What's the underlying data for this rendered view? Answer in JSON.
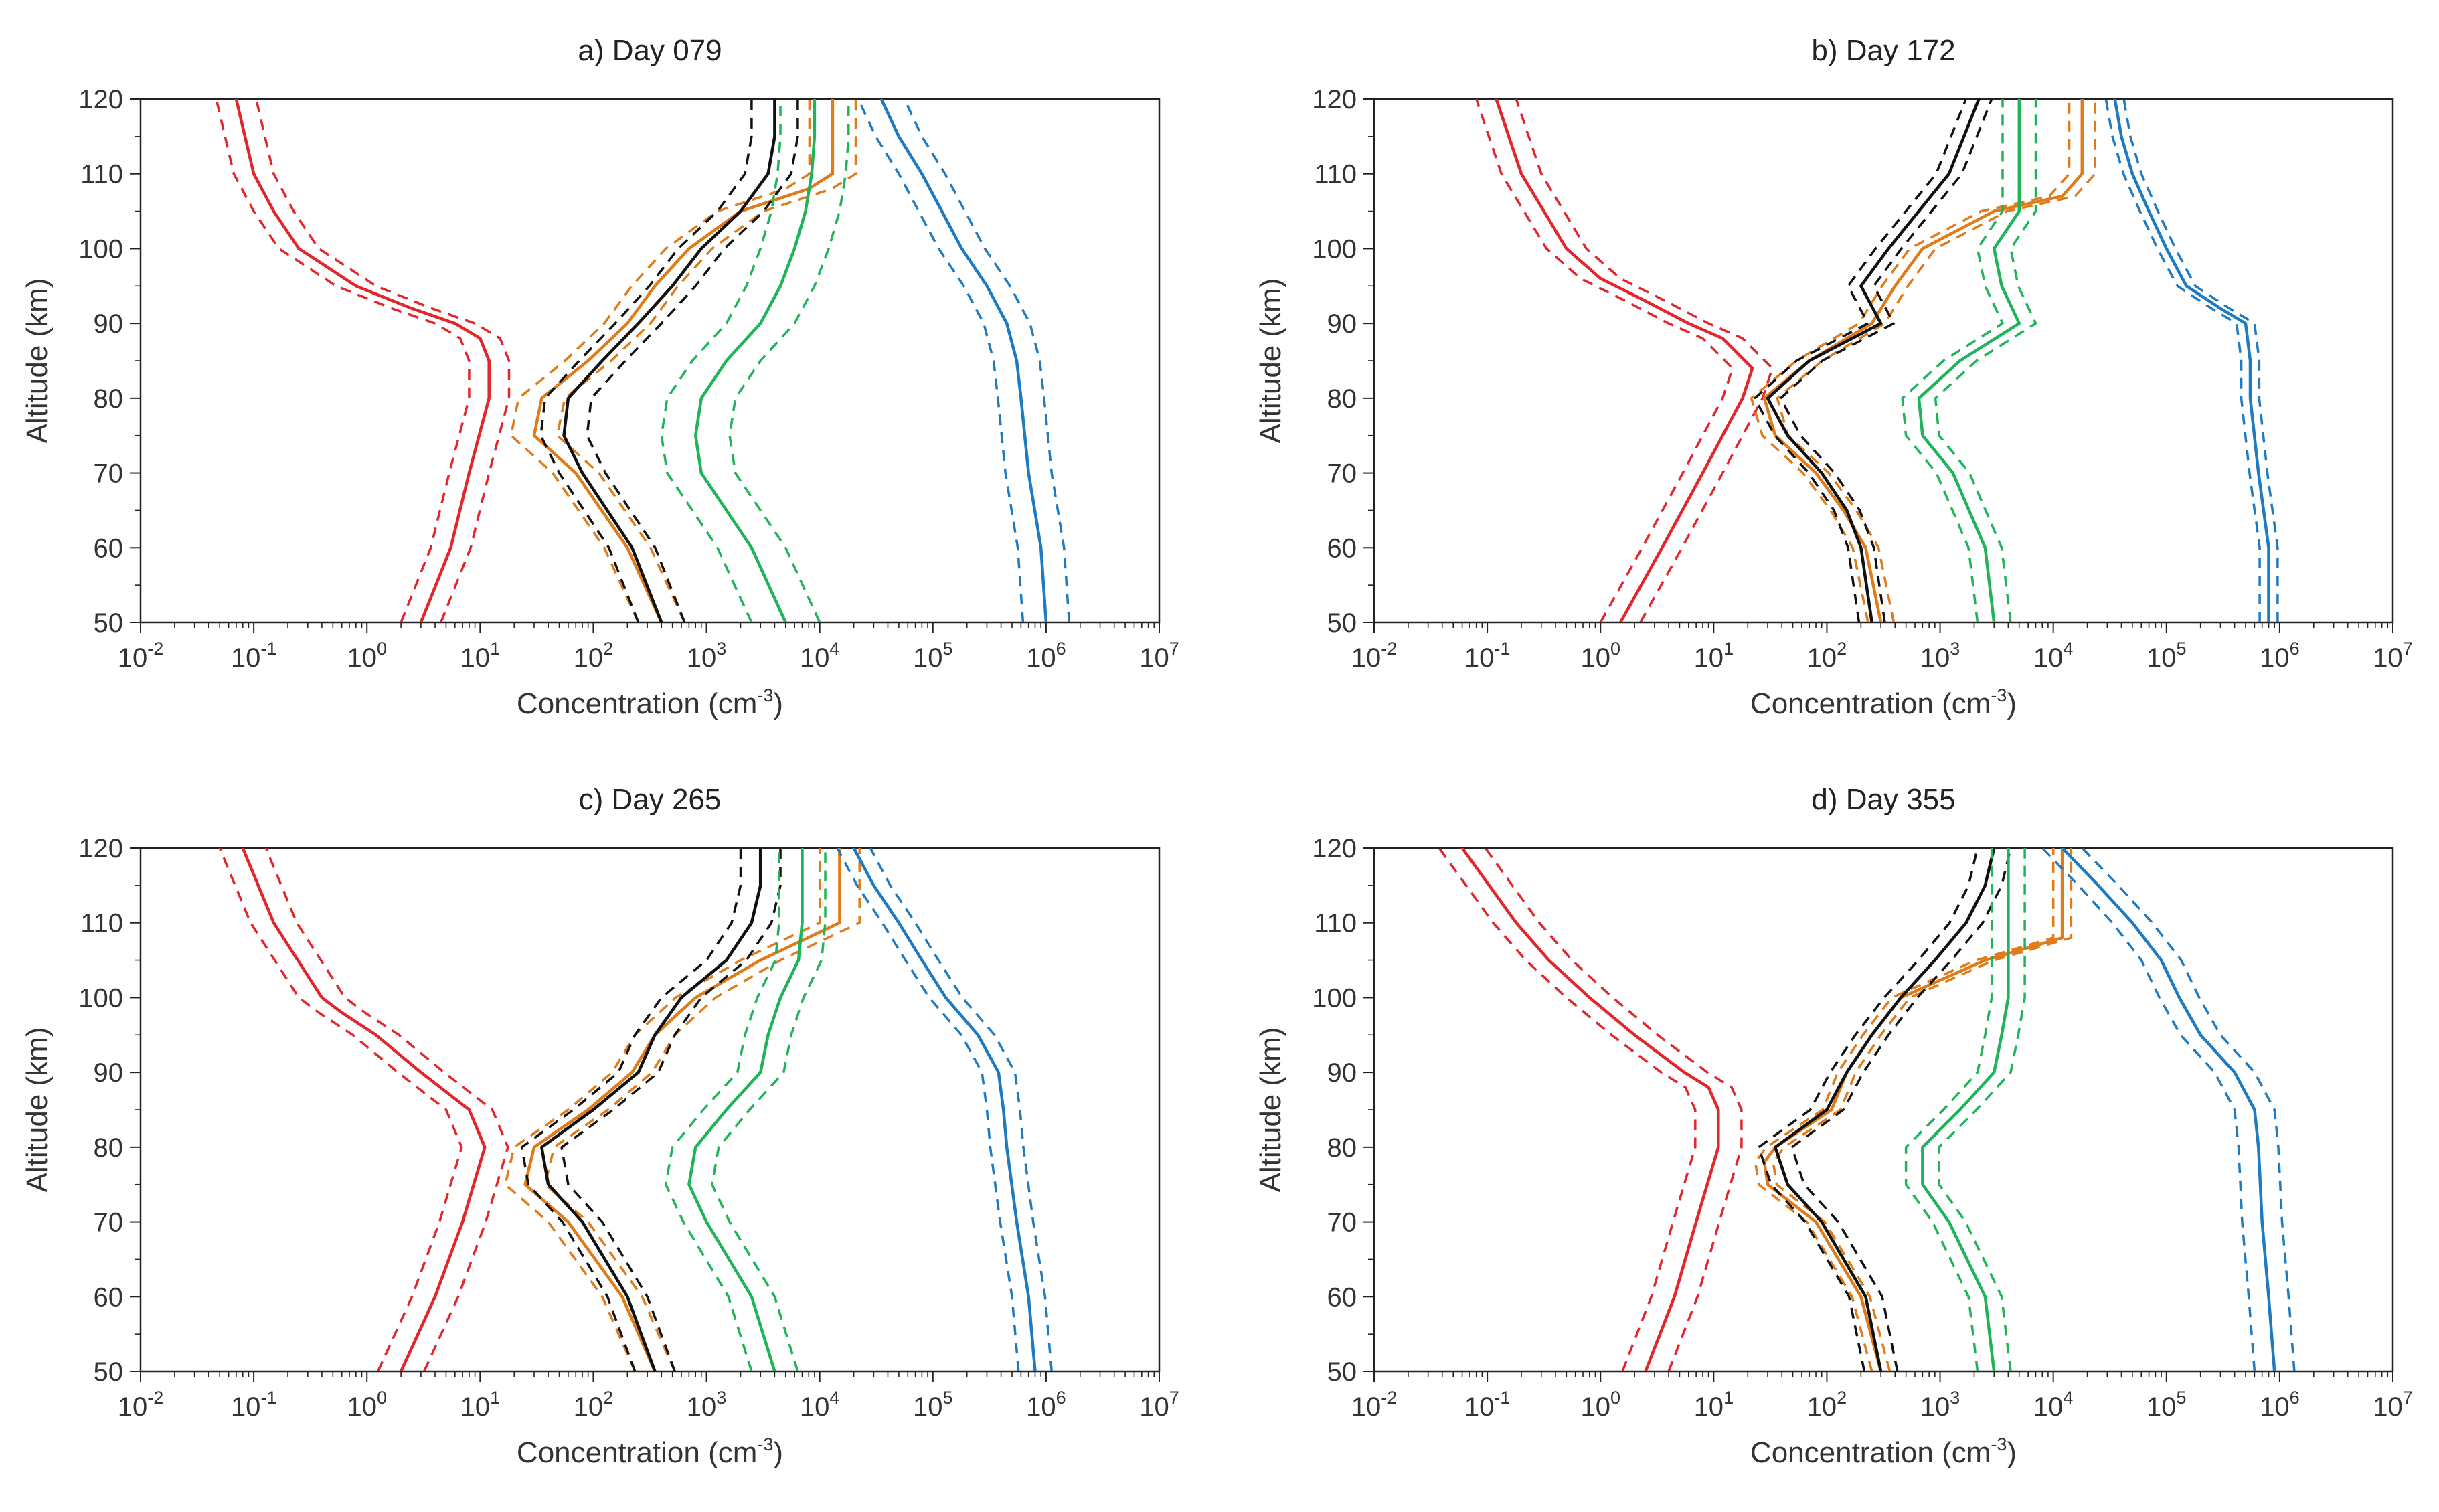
{
  "colors": {
    "red": "#e3262b",
    "black": "#111111",
    "orange": "#e07b1a",
    "green": "#1fb45a",
    "blue": "#1f7bc1"
  },
  "chart_data": [
    {
      "id": "a",
      "type": "line",
      "title": "a) Day 079",
      "xlabel": "Concentration (cm",
      "xlabel_sup": "-3",
      "xlabel_close": ")",
      "ylabel": "Altitude (km)",
      "xscale": "log",
      "xlim": [
        0.01,
        10000000
      ],
      "ylim": [
        50,
        120
      ],
      "xtick_base": "10",
      "xtick_exps": [
        "-2",
        "-1",
        "0",
        "1",
        "2",
        "3",
        "4",
        "5",
        "6",
        "7"
      ],
      "yticks": [
        "50",
        "60",
        "70",
        "80",
        "90",
        "100",
        "110",
        "120"
      ],
      "series": [
        {
          "color": "red",
          "y": [
            50,
            60,
            70,
            80,
            85,
            88,
            90,
            92,
            95,
            98,
            100,
            105,
            110,
            120
          ],
          "x": [
            3,
            5.5,
            8,
            12,
            12,
            10,
            6,
            2.5,
            0.8,
            0.4,
            0.25,
            0.15,
            0.1,
            0.07
          ],
          "spread": 1.5
        },
        {
          "color": "orange",
          "y": [
            50,
            60,
            70,
            75,
            80,
            85,
            90,
            95,
            100,
            105,
            108,
            110,
            115,
            120
          ],
          "x": [
            400,
            200,
            70,
            30,
            35,
            90,
            200,
            350,
            700,
            2000,
            8000,
            13000,
            13000,
            13000
          ],
          "spread": 1.6
        },
        {
          "color": "black",
          "y": [
            50,
            60,
            70,
            75,
            80,
            85,
            90,
            95,
            100,
            105,
            110,
            115,
            120
          ],
          "x": [
            400,
            220,
            80,
            55,
            60,
            120,
            250,
            500,
            900,
            2000,
            3500,
            4000,
            4000
          ],
          "spread": 1.6
        },
        {
          "color": "green",
          "y": [
            50,
            60,
            70,
            75,
            80,
            85,
            90,
            95,
            100,
            105,
            110,
            115,
            120
          ],
          "x": [
            5000,
            2500,
            900,
            800,
            900,
            1500,
            3000,
            4500,
            6000,
            7500,
            8500,
            9000,
            9000
          ],
          "spread": 2.0
        },
        {
          "color": "blue",
          "y": [
            50,
            60,
            70,
            80,
            85,
            90,
            95,
            100,
            105,
            110,
            115,
            120
          ],
          "x": [
            1000000,
            900000,
            700000,
            600000,
            550000,
            450000,
            300000,
            180000,
            120000,
            80000,
            50000,
            35000
          ],
          "spread": 1.6
        }
      ]
    },
    {
      "id": "b",
      "type": "line",
      "title": "b) Day 172",
      "xlabel": "Concentration (cm",
      "xlabel_sup": "-3",
      "xlabel_close": ")",
      "ylabel": "Altitude (km)",
      "xscale": "log",
      "xlim": [
        0.01,
        10000000
      ],
      "ylim": [
        50,
        120
      ],
      "xtick_base": "10",
      "xtick_exps": [
        "-2",
        "-1",
        "0",
        "1",
        "2",
        "3",
        "4",
        "5",
        "6",
        "7"
      ],
      "yticks": [
        "50",
        "60",
        "70",
        "80",
        "90",
        "100",
        "110",
        "120"
      ],
      "series": [
        {
          "color": "red",
          "y": [
            50,
            60,
            70,
            80,
            84,
            88,
            90,
            93,
            96,
            100,
            110,
            120
          ],
          "x": [
            1.5,
            3.5,
            8,
            18,
            22,
            12,
            6,
            2.5,
            1,
            0.5,
            0.2,
            0.12
          ],
          "spread": 1.5
        },
        {
          "color": "orange",
          "y": [
            50,
            60,
            65,
            70,
            75,
            80,
            85,
            90,
            95,
            100,
            105,
            107,
            110,
            115,
            120
          ],
          "x": [
            300,
            220,
            140,
            80,
            35,
            28,
            70,
            250,
            400,
            700,
            3000,
            12000,
            18000,
            18000,
            18000
          ],
          "spread": 1.3
        },
        {
          "color": "black",
          "y": [
            50,
            60,
            65,
            70,
            75,
            80,
            85,
            90,
            95,
            100,
            110,
            120
          ],
          "x": [
            250,
            200,
            150,
            90,
            45,
            30,
            70,
            300,
            200,
            350,
            1200,
            2200
          ],
          "spread": 1.3
        },
        {
          "color": "green",
          "y": [
            50,
            60,
            70,
            75,
            80,
            85,
            90,
            95,
            100,
            105,
            110,
            115,
            120
          ],
          "x": [
            3000,
            2500,
            1300,
            700,
            650,
            1500,
            5000,
            3500,
            3000,
            5000,
            5000,
            5000,
            5000
          ],
          "spread": 1.4
        },
        {
          "color": "blue",
          "y": [
            50,
            60,
            70,
            80,
            85,
            90,
            92,
            95,
            100,
            105,
            110,
            115,
            120
          ],
          "x": [
            800000,
            800000,
            650000,
            550000,
            550000,
            500000,
            300000,
            150000,
            100000,
            70000,
            50000,
            40000,
            35000
          ],
          "spread": 1.2
        }
      ]
    },
    {
      "id": "c",
      "type": "line",
      "title": "c) Day 265",
      "xlabel": "Concentration (cm",
      "xlabel_sup": "-3",
      "xlabel_close": ")",
      "ylabel": "Altitude (km)",
      "xscale": "log",
      "xlim": [
        0.01,
        10000000
      ],
      "ylim": [
        50,
        120
      ],
      "xtick_base": "10",
      "xtick_exps": [
        "-2",
        "-1",
        "0",
        "1",
        "2",
        "3",
        "4",
        "5",
        "6",
        "7"
      ],
      "yticks": [
        "50",
        "60",
        "70",
        "80",
        "90",
        "100",
        "110",
        "120"
      ],
      "series": [
        {
          "color": "red",
          "y": [
            50,
            60,
            70,
            80,
            85,
            90,
            95,
            98,
            100,
            110,
            120
          ],
          "x": [
            2,
            4,
            7,
            11,
            8,
            3,
            1.2,
            0.6,
            0.4,
            0.15,
            0.08
          ],
          "spread": 1.6
        },
        {
          "color": "orange",
          "y": [
            50,
            60,
            70,
            75,
            80,
            85,
            90,
            95,
            100,
            105,
            110,
            115,
            120
          ],
          "x": [
            350,
            180,
            60,
            25,
            30,
            90,
            220,
            350,
            800,
            3000,
            15000,
            15000,
            15000
          ],
          "spread": 1.5
        },
        {
          "color": "black",
          "y": [
            50,
            60,
            70,
            75,
            80,
            85,
            90,
            95,
            100,
            105,
            110,
            115,
            120
          ],
          "x": [
            350,
            200,
            80,
            40,
            35,
            100,
            250,
            350,
            600,
            1500,
            2500,
            3000,
            3000
          ],
          "spread": 1.5
        },
        {
          "color": "green",
          "y": [
            50,
            60,
            70,
            75,
            80,
            85,
            90,
            95,
            100,
            105,
            110,
            115,
            120
          ],
          "x": [
            4000,
            2500,
            1000,
            700,
            800,
            1500,
            3000,
            3500,
            4500,
            6500,
            7000,
            7000,
            7000
          ],
          "spread": 1.6
        },
        {
          "color": "blue",
          "y": [
            50,
            60,
            70,
            80,
            85,
            90,
            95,
            100,
            105,
            110,
            115,
            120
          ],
          "x": [
            800000,
            700000,
            550000,
            450000,
            420000,
            380000,
            250000,
            130000,
            80000,
            50000,
            30000,
            20000
          ],
          "spread": 1.4
        }
      ]
    },
    {
      "id": "d",
      "type": "line",
      "title": "d) Day 355",
      "xlabel": "Concentration (cm",
      "xlabel_sup": "-3",
      "xlabel_close": ")",
      "ylabel": "Altitude (km)",
      "xscale": "log",
      "xlim": [
        0.01,
        10000000
      ],
      "ylim": [
        50,
        120
      ],
      "xtick_base": "10",
      "xtick_exps": [
        "-2",
        "-1",
        "0",
        "1",
        "2",
        "3",
        "4",
        "5",
        "6",
        "7"
      ],
      "yticks": [
        "50",
        "60",
        "70",
        "80",
        "90",
        "100",
        "110",
        "120"
      ],
      "series": [
        {
          "color": "red",
          "y": [
            50,
            60,
            70,
            80,
            85,
            88,
            90,
            95,
            100,
            105,
            110,
            120
          ],
          "x": [
            2.5,
            4.5,
            7,
            11,
            11,
            9,
            5.5,
            2,
            0.8,
            0.35,
            0.18,
            0.06
          ],
          "spread": 1.6
        },
        {
          "color": "orange",
          "y": [
            50,
            60,
            70,
            75,
            78,
            80,
            85,
            90,
            95,
            100,
            105,
            108,
            110,
            115,
            120
          ],
          "x": [
            300,
            200,
            80,
            30,
            28,
            35,
            110,
            150,
            250,
            450,
            2500,
            12000,
            12000,
            12000,
            12000
          ],
          "spread": 1.2
        },
        {
          "color": "black",
          "y": [
            50,
            60,
            70,
            75,
            80,
            85,
            90,
            95,
            100,
            105,
            110,
            115,
            120
          ],
          "x": [
            300,
            220,
            90,
            45,
            35,
            100,
            150,
            250,
            450,
            900,
            1700,
            2500,
            3000
          ],
          "spread": 1.4
        },
        {
          "color": "green",
          "y": [
            50,
            60,
            70,
            75,
            80,
            85,
            90,
            95,
            100,
            105,
            110,
            115,
            120
          ],
          "x": [
            3000,
            2500,
            1200,
            700,
            700,
            1500,
            3000,
            3500,
            4000,
            4000,
            4000,
            4000,
            4000
          ],
          "spread": 1.4
        },
        {
          "color": "blue",
          "y": [
            50,
            60,
            70,
            80,
            85,
            90,
            95,
            100,
            105,
            110,
            115,
            120
          ],
          "x": [
            900000,
            800000,
            700000,
            650000,
            600000,
            400000,
            200000,
            130000,
            90000,
            50000,
            25000,
            12000
          ],
          "spread": 1.5
        }
      ]
    }
  ]
}
